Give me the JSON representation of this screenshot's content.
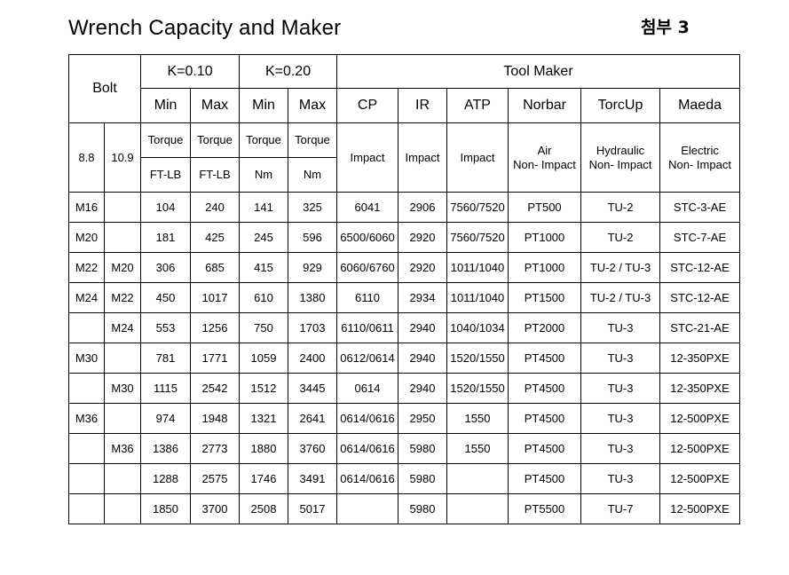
{
  "title": "Wrench Capacity and Maker",
  "attachment_label": "첨부 3",
  "header": {
    "bolt": "Bolt",
    "k010": "K=0.10",
    "k020": "K=0.20",
    "tool_maker": "Tool Maker",
    "min": "Min",
    "max": "Max",
    "makers": [
      "CP",
      "IR",
      "ATP",
      "Norbar",
      "TorcUp",
      "Maeda"
    ],
    "grade_88": "8.8",
    "grade_109": "10.9",
    "torque": "Torque",
    "unit_ftlb": "FT-LB",
    "unit_nm": "Nm",
    "cp_type": "Impact",
    "ir_type": "Impact",
    "atp_type": "Impact",
    "norbar_type_1": "Air",
    "norbar_type_2": "Non- Impact",
    "torcup_type_1": "Hydraulic",
    "torcup_type_2": "Non- Impact",
    "maeda_type_1": "Electric",
    "maeda_type_2": "Non- Impact"
  },
  "rows": [
    {
      "b88": "M16",
      "b109": "",
      "k1min": "104",
      "k1max": "240",
      "k2min": "141",
      "k2max": "325",
      "cp": "6041",
      "ir": "2906",
      "atp": "7560/7520",
      "norbar": "PT500",
      "torcup": "TU-2",
      "maeda": "STC-3-AE"
    },
    {
      "b88": "M20",
      "b109": "",
      "k1min": "181",
      "k1max": "425",
      "k2min": "245",
      "k2max": "596",
      "cp": "6500/6060",
      "ir": "2920",
      "atp": "7560/7520",
      "norbar": "PT1000",
      "torcup": "TU-2",
      "maeda": "STC-7-AE"
    },
    {
      "b88": "M22",
      "b109": "M20",
      "k1min": "306",
      "k1max": "685",
      "k2min": "415",
      "k2max": "929",
      "cp": "6060/6760",
      "ir": "2920",
      "atp": "1011/1040",
      "norbar": "PT1000",
      "torcup": "TU-2 / TU-3",
      "maeda": "STC-12-AE"
    },
    {
      "b88": "M24",
      "b109": "M22",
      "k1min": "450",
      "k1max": "1017",
      "k2min": "610",
      "k2max": "1380",
      "cp": "6110",
      "ir": "2934",
      "atp": "1011/1040",
      "norbar": "PT1500",
      "torcup": "TU-2 / TU-3",
      "maeda": "STC-12-AE"
    },
    {
      "b88": "",
      "b109": "M24",
      "k1min": "553",
      "k1max": "1256",
      "k2min": "750",
      "k2max": "1703",
      "cp": "6110/0611",
      "ir": "2940",
      "atp": "1040/1034",
      "norbar": "PT2000",
      "torcup": "TU-3",
      "maeda": "STC-21-AE"
    },
    {
      "b88": "M30",
      "b109": "",
      "k1min": "781",
      "k1max": "1771",
      "k2min": "1059",
      "k2max": "2400",
      "cp": "0612/0614",
      "ir": "2940",
      "atp": "1520/1550",
      "norbar": "PT4500",
      "torcup": "TU-3",
      "maeda": "12-350PXE"
    },
    {
      "b88": "",
      "b109": "M30",
      "k1min": "1115",
      "k1max": "2542",
      "k2min": "1512",
      "k2max": "3445",
      "cp": "0614",
      "ir": "2940",
      "atp": "1520/1550",
      "norbar": "PT4500",
      "torcup": "TU-3",
      "maeda": "12-350PXE"
    },
    {
      "b88": "M36",
      "b109": "",
      "k1min": "974",
      "k1max": "1948",
      "k2min": "1321",
      "k2max": "2641",
      "cp": "0614/0616",
      "ir": "2950",
      "atp": "1550",
      "norbar": "PT4500",
      "torcup": "TU-3",
      "maeda": "12-500PXE"
    },
    {
      "b88": "",
      "b109": "M36",
      "k1min": "1386",
      "k1max": "2773",
      "k2min": "1880",
      "k2max": "3760",
      "cp": "0614/0616",
      "ir": "5980",
      "atp": "1550",
      "norbar": "PT4500",
      "torcup": "TU-3",
      "maeda": "12-500PXE"
    },
    {
      "b88": "",
      "b109": "",
      "k1min": "1288",
      "k1max": "2575",
      "k2min": "1746",
      "k2max": "3491",
      "cp": "0614/0616",
      "ir": "5980",
      "atp": "",
      "norbar": "PT4500",
      "torcup": "TU-3",
      "maeda": "12-500PXE"
    },
    {
      "b88": "",
      "b109": "",
      "k1min": "1850",
      "k1max": "3700",
      "k2min": "2508",
      "k2max": "5017",
      "cp": "",
      "ir": "5980",
      "atp": "",
      "norbar": "PT5500",
      "torcup": "TU-7",
      "maeda": "12-500PXE"
    }
  ]
}
